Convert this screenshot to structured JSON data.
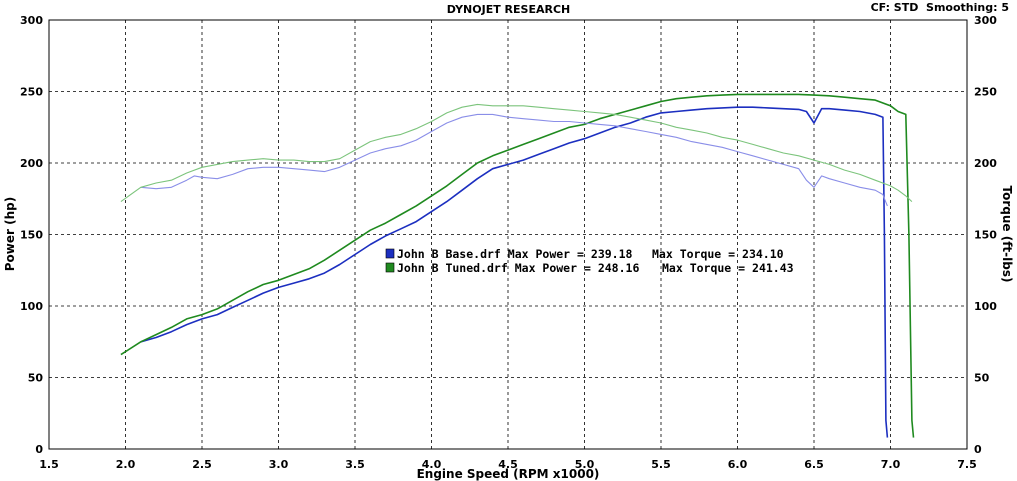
{
  "header": {
    "title": "DYNOJET RESEARCH",
    "cf_label": "CF: STD",
    "smoothing_label": "Smoothing: 5"
  },
  "chart_data": {
    "type": "line",
    "title": "DYNOJET RESEARCH",
    "xlabel": "Engine Speed (RPM x1000)",
    "ylabel_left": "Power (hp)",
    "ylabel_right": "Torque (ft-lbs)",
    "xlim": [
      1.5,
      7.5
    ],
    "ylim": [
      0,
      300
    ],
    "x_ticks": [
      "1.5",
      "2.0",
      "2.5",
      "3.0",
      "3.5",
      "4.0",
      "4.5",
      "5.0",
      "5.5",
      "6.0",
      "6.5",
      "7.0",
      "7.5"
    ],
    "y_ticks": [
      "0",
      "50",
      "100",
      "150",
      "200",
      "250",
      "300"
    ],
    "grid": true,
    "legend": [
      {
        "file": "John B Base.drf",
        "max_power_label": "Max Power =",
        "max_power": "239.18",
        "max_torque_label": "Max Torque =",
        "max_torque": "234.10",
        "color": "#1c2fc0"
      },
      {
        "file": "John B Tuned.drf",
        "max_power_label": "Max Power =",
        "max_power": "248.16",
        "max_torque_label": "Max Torque =",
        "max_torque": "241.43",
        "color": "#1f8a1f"
      }
    ],
    "series": [
      {
        "name": "John B Base.drf",
        "measure": "power",
        "color": "#1c2fc0",
        "x": [
          2.1,
          2.2,
          2.3,
          2.4,
          2.5,
          2.6,
          2.7,
          2.8,
          2.9,
          3.0,
          3.1,
          3.2,
          3.3,
          3.4,
          3.5,
          3.6,
          3.7,
          3.8,
          3.9,
          4.0,
          4.1,
          4.2,
          4.3,
          4.4,
          4.5,
          4.6,
          4.7,
          4.8,
          4.9,
          5.0,
          5.1,
          5.2,
          5.3,
          5.4,
          5.5,
          5.6,
          5.7,
          5.8,
          5.9,
          6.0,
          6.1,
          6.2,
          6.3,
          6.4,
          6.45,
          6.5,
          6.55,
          6.6,
          6.7,
          6.8,
          6.9,
          6.95,
          6.96,
          6.97,
          6.98
        ],
        "y": [
          75,
          78,
          82,
          87,
          91,
          94,
          99,
          104,
          109,
          113,
          116,
          119,
          123,
          129,
          136,
          143,
          149,
          154,
          159,
          166,
          173,
          181,
          189,
          196,
          199,
          202,
          206,
          210,
          214,
          217,
          221,
          225,
          228,
          232,
          235,
          236,
          237,
          238,
          238.5,
          239,
          239,
          238.5,
          238,
          237.5,
          236,
          228,
          238,
          238,
          237,
          236,
          234,
          232,
          150,
          20,
          8
        ]
      },
      {
        "name": "John B Tuned.drf",
        "measure": "power",
        "color": "#1f8a1f",
        "x": [
          1.97,
          2.1,
          2.2,
          2.3,
          2.4,
          2.5,
          2.6,
          2.7,
          2.8,
          2.9,
          3.0,
          3.1,
          3.2,
          3.3,
          3.4,
          3.5,
          3.6,
          3.7,
          3.8,
          3.9,
          4.0,
          4.1,
          4.2,
          4.3,
          4.4,
          4.5,
          4.6,
          4.7,
          4.8,
          4.9,
          5.0,
          5.1,
          5.2,
          5.3,
          5.4,
          5.5,
          5.6,
          5.7,
          5.8,
          5.9,
          6.0,
          6.1,
          6.2,
          6.3,
          6.4,
          6.5,
          6.6,
          6.7,
          6.8,
          6.9,
          7.0,
          7.05,
          7.1,
          7.12,
          7.14,
          7.15
        ],
        "y": [
          66,
          75,
          80,
          85,
          91,
          94,
          98,
          104,
          110,
          115,
          118,
          122,
          126,
          132,
          139,
          146,
          153,
          158,
          164,
          170,
          177,
          184,
          192,
          200,
          205,
          209,
          213,
          217,
          221,
          225,
          227,
          231,
          234,
          237,
          240,
          243,
          245,
          246,
          247,
          247.5,
          248,
          248,
          248,
          248,
          248,
          247.5,
          247,
          246,
          245,
          244,
          240,
          236,
          234,
          150,
          20,
          8
        ]
      },
      {
        "name": "John B Base.drf",
        "measure": "torque",
        "color": "#8a8ee8",
        "x": [
          2.1,
          2.2,
          2.3,
          2.4,
          2.45,
          2.5,
          2.6,
          2.7,
          2.8,
          2.9,
          3.0,
          3.1,
          3.2,
          3.3,
          3.4,
          3.5,
          3.6,
          3.7,
          3.8,
          3.9,
          4.0,
          4.1,
          4.2,
          4.3,
          4.4,
          4.5,
          4.6,
          4.7,
          4.8,
          4.9,
          5.0,
          5.1,
          5.2,
          5.3,
          5.4,
          5.5,
          5.6,
          5.7,
          5.8,
          5.9,
          6.0,
          6.1,
          6.2,
          6.3,
          6.4,
          6.45,
          6.5,
          6.55,
          6.6,
          6.7,
          6.8,
          6.9,
          6.95,
          6.96,
          6.98
        ],
        "y": [
          183,
          182,
          183,
          188,
          191,
          190,
          189,
          192,
          196,
          197,
          197,
          196,
          195,
          194,
          197,
          202,
          207,
          210,
          212,
          216,
          222,
          228,
          232,
          234,
          234,
          232,
          231,
          230,
          229,
          229,
          228,
          227,
          226,
          224,
          222,
          220,
          218,
          215,
          213,
          211,
          208,
          205,
          202,
          199,
          196,
          188,
          183,
          191,
          189,
          186,
          183,
          181,
          178,
          175,
          170
        ]
      },
      {
        "name": "John B Tuned.drf",
        "measure": "torque",
        "color": "#7cc47c",
        "x": [
          1.97,
          2.1,
          2.2,
          2.3,
          2.4,
          2.5,
          2.6,
          2.7,
          2.8,
          2.9,
          3.0,
          3.1,
          3.2,
          3.3,
          3.4,
          3.5,
          3.6,
          3.7,
          3.8,
          3.9,
          4.0,
          4.1,
          4.2,
          4.3,
          4.4,
          4.5,
          4.6,
          4.7,
          4.8,
          4.9,
          5.0,
          5.1,
          5.2,
          5.3,
          5.4,
          5.5,
          5.6,
          5.7,
          5.8,
          5.9,
          6.0,
          6.1,
          6.2,
          6.3,
          6.4,
          6.5,
          6.6,
          6.7,
          6.8,
          6.9,
          7.0,
          7.05,
          7.1,
          7.14
        ],
        "y": [
          173,
          183,
          186,
          188,
          193,
          197,
          199,
          201,
          202,
          203,
          202,
          202,
          201,
          201,
          203,
          209,
          215,
          218,
          220,
          224,
          229,
          235,
          239,
          241,
          240,
          240,
          240,
          239,
          238,
          237,
          236,
          235,
          234,
          232,
          230,
          228,
          225,
          223,
          221,
          218,
          216,
          213,
          210,
          207,
          205,
          202,
          199,
          195,
          192,
          188,
          184,
          181,
          177,
          173
        ]
      }
    ]
  }
}
